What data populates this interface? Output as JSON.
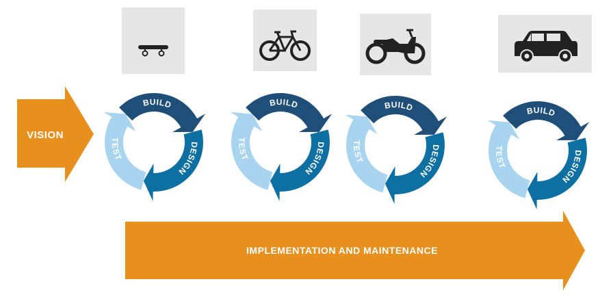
{
  "vision": {
    "label": "VISION",
    "color": "#e8901e"
  },
  "implementation": {
    "label": "IMPLEMENTATION AND MAINTENANCE",
    "color": "#e8901e"
  },
  "cycle_labels": {
    "build": "BUILD",
    "design": "DESIGN",
    "test": "TEST"
  },
  "cycle_colors": {
    "build": "#1f4e79",
    "design": "#0e6fa3",
    "test": "#a9d4f0"
  },
  "vehicle_box_color": "#e6e6e6",
  "stages": [
    {
      "vehicle": "skateboard-icon"
    },
    {
      "vehicle": "bicycle-icon"
    },
    {
      "vehicle": "motorcycle-icon"
    },
    {
      "vehicle": "car-icon"
    }
  ]
}
